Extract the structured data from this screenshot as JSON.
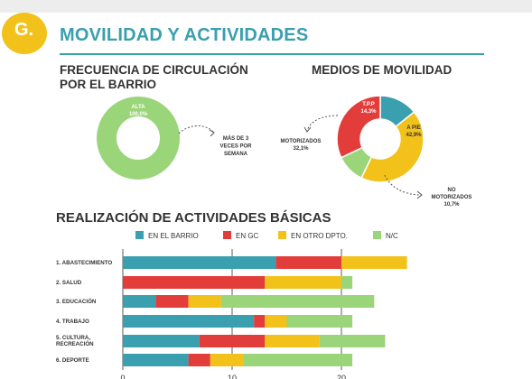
{
  "header": {
    "badge_letter": "G.",
    "section_title": "MOVILIDAD Y ACTIVIDADES"
  },
  "colors": {
    "teal": "#3a9fae",
    "red": "#e23d3a",
    "yellow": "#f2c21b",
    "green": "#9ad57a",
    "badge": "#f2c21b"
  },
  "chart_data": [
    {
      "type": "pie",
      "title": "FRECUENCIA DE CIRCULACIÓN POR EL BARRIO",
      "slices": [
        {
          "label": "ALTA",
          "value": 100.0,
          "display": "100,0%",
          "color": "#9ad57a"
        }
      ],
      "annotation": "MÁS DE 3 VECES POR SEMANA"
    },
    {
      "type": "pie",
      "title": "MEDIOS DE MOVILIDAD",
      "slices": [
        {
          "label": "T.P.P",
          "value": 14.3,
          "display": "14,3%",
          "color": "#3a9fae"
        },
        {
          "label": "A PIE",
          "value": 42.9,
          "display": "42,9%",
          "color": "#f2c21b"
        },
        {
          "label": "NO MOTORIZADOS",
          "value": 10.7,
          "display": "10,7%",
          "color": "#9ad57a"
        },
        {
          "label": "MOTORIZADOS",
          "value": 32.1,
          "display": "32,1%",
          "color": "#e23d3a"
        }
      ]
    },
    {
      "type": "bar",
      "orientation": "horizontal",
      "stacked": true,
      "title": "REALIZACIÓN DE ACTIVIDADES BÁSICAS",
      "categories": [
        "1. ABASTECIMIENTO",
        "2. SALUD",
        "3. EDUCACIÓN",
        "4. TRABAJO",
        "5. CULTURA, RECREACIÓN",
        "6. DEPORTE"
      ],
      "series": [
        {
          "name": "EN EL BARRIO",
          "color": "#3a9fae",
          "values": [
            14,
            0,
            3,
            12,
            7,
            6
          ]
        },
        {
          "name": "EN GC",
          "color": "#e23d3a",
          "values": [
            6,
            13,
            3,
            1,
            6,
            2
          ]
        },
        {
          "name": "EN OTRO DPTO.",
          "color": "#f2c21b",
          "values": [
            6,
            7,
            3,
            2,
            5,
            3
          ]
        },
        {
          "name": "N/C",
          "color": "#9ad57a",
          "values": [
            0,
            1,
            14,
            6,
            6,
            10
          ]
        }
      ],
      "xticks": [
        "0",
        "10",
        "20"
      ],
      "xlim": [
        0,
        30
      ],
      "legend_position": "top"
    }
  ]
}
